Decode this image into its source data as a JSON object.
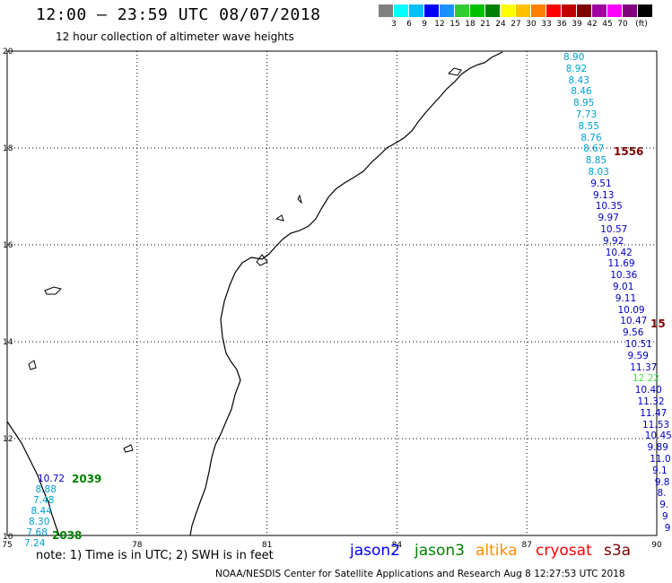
{
  "header": {
    "title": "12:00 – 23:59 UTC 08/07/2018",
    "subtitle": "12 hour collection of altimeter wave heights"
  },
  "legend": {
    "colors": [
      "#808080",
      "#00ffff",
      "#00bfff",
      "#0000ff",
      "#1e90ff",
      "#32cd32",
      "#00c000",
      "#008000",
      "#ffff00",
      "#ffc000",
      "#ff8000",
      "#ff0000",
      "#c00000",
      "#800000",
      "#a000a0",
      "#ff00ff",
      "#800080",
      "#000000"
    ],
    "labels": [
      "3",
      "6",
      "9",
      "12",
      "15",
      "18",
      "21",
      "24",
      "27",
      "30",
      "33",
      "36",
      "39",
      "42",
      "45",
      "70",
      "(ft)"
    ]
  },
  "axes": {
    "x_ticks": [
      "75",
      "78",
      "81",
      "84",
      "87",
      "90"
    ],
    "y_ticks": [
      "10",
      "12",
      "14",
      "16",
      "18",
      "20"
    ]
  },
  "tracks": [
    {
      "id": "1556",
      "id_color": "#800000",
      "values": [
        {
          "v": "8.90",
          "c": "#00a0d0"
        },
        {
          "v": "8.92",
          "c": "#00a0d0"
        },
        {
          "v": "8.43",
          "c": "#00a0d0"
        },
        {
          "v": "8.46",
          "c": "#00a0d0"
        },
        {
          "v": "8.95",
          "c": "#00a0d0"
        },
        {
          "v": "7.73",
          "c": "#00a0d0"
        },
        {
          "v": "8.55",
          "c": "#00a0d0"
        },
        {
          "v": "8.76",
          "c": "#00a0d0"
        },
        {
          "v": "8.67",
          "c": "#00a0d0"
        },
        {
          "v": "8.85",
          "c": "#00a0d0"
        },
        {
          "v": "8.03",
          "c": "#00a0d0"
        },
        {
          "v": "9.51",
          "c": "#0000c0"
        },
        {
          "v": "9.13",
          "c": "#0000c0"
        },
        {
          "v": "10.35",
          "c": "#0000c0"
        },
        {
          "v": "9.97",
          "c": "#0000c0"
        },
        {
          "v": "10.57",
          "c": "#0000c0"
        },
        {
          "v": "9.92",
          "c": "#0000c0"
        },
        {
          "v": "10.42",
          "c": "#0000c0"
        },
        {
          "v": "11.69",
          "c": "#0000c0"
        },
        {
          "v": "10.36",
          "c": "#0000c0"
        },
        {
          "v": "9.01",
          "c": "#0000c0"
        },
        {
          "v": "9.11",
          "c": "#0000c0"
        },
        {
          "v": "10.09",
          "c": "#0000c0"
        },
        {
          "v": "10.47",
          "c": "#0000c0"
        },
        {
          "v": "9.56",
          "c": "#0000c0"
        },
        {
          "v": "10.51",
          "c": "#0000c0"
        },
        {
          "v": "9.59",
          "c": "#0000c0"
        },
        {
          "v": "11.37",
          "c": "#0000c0"
        },
        {
          "v": "12.22",
          "c": "#50e050"
        },
        {
          "v": "10.40",
          "c": "#0000c0"
        },
        {
          "v": "11.32",
          "c": "#0000c0"
        },
        {
          "v": "11.47",
          "c": "#0000c0"
        },
        {
          "v": "11.53",
          "c": "#0000c0"
        },
        {
          "v": "10.45",
          "c": "#0000c0"
        },
        {
          "v": "9.89",
          "c": "#0000c0"
        },
        {
          "v": "11.0",
          "c": "#0000c0"
        },
        {
          "v": "9.1",
          "c": "#0000c0"
        },
        {
          "v": "9.8",
          "c": "#0000c0"
        },
        {
          "v": "8.",
          "c": "#0000c0"
        },
        {
          "v": "9.",
          "c": "#0000c0"
        },
        {
          "v": "9",
          "c": "#0000c0"
        },
        {
          "v": "9",
          "c": "#0000c0"
        }
      ]
    },
    {
      "id": "15",
      "id_color": "#800000",
      "values": []
    },
    {
      "id": "2039",
      "id_color": "#008000",
      "values": [
        {
          "v": "10.72",
          "c": "#0000c0"
        },
        {
          "v": "8.88",
          "c": "#00a0d0"
        },
        {
          "v": "7.48",
          "c": "#00a0d0"
        },
        {
          "v": "8.44",
          "c": "#00a0d0"
        },
        {
          "v": "8.30",
          "c": "#00a0d0"
        },
        {
          "v": "7.68",
          "c": "#00a0d0"
        },
        {
          "v": "7.24",
          "c": "#00a0d0"
        }
      ]
    },
    {
      "id": "2038",
      "id_color": "#008000",
      "values": []
    }
  ],
  "footer": {
    "note": "note:  1) Time is in UTC;  2) SWH is in feet",
    "satellites": [
      {
        "name": "jason2",
        "color": "#0000ff"
      },
      {
        "name": "jason3",
        "color": "#008000"
      },
      {
        "name": "altika",
        "color": "#ff8c00"
      },
      {
        "name": "cryosat",
        "color": "#ff0000"
      },
      {
        "name": "s3a",
        "color": "#800000"
      }
    ],
    "credit": "NOAA/NESDIS Center for Satellite Applications and Research    Aug  8 12:27:53 UTC 2018"
  }
}
